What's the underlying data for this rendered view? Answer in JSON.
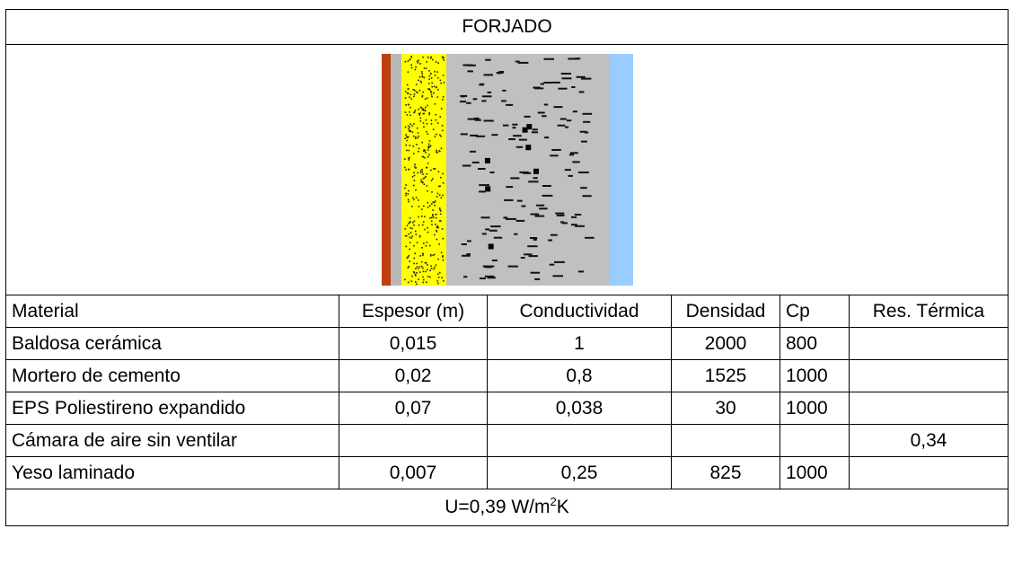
{
  "title": "FORJADO",
  "columns": [
    "Material",
    "Espesor (m)",
    "Conductividad",
    "Densidad",
    "Cp",
    "Res. Térmica"
  ],
  "rows": [
    [
      "Baldosa cerámica",
      "0,015",
      "1",
      "2000",
      "800",
      ""
    ],
    [
      "Mortero de cemento",
      "0,02",
      "0,8",
      "1525",
      "1000",
      ""
    ],
    [
      "EPS Poliestireno expandido",
      "0,07",
      "0,038",
      "30",
      "1000",
      ""
    ],
    [
      "Cámara de aire sin ventilar",
      "",
      "",
      "",
      "",
      "0,34"
    ],
    [
      "Yeso laminado",
      "0,007",
      "0,25",
      "825",
      "1000",
      ""
    ]
  ],
  "u_value": {
    "prefix": "U=0,39 W/m",
    "superscript": "2",
    "suffix": "K"
  },
  "layer_figure": {
    "layers": [
      {
        "name": "Baldosa cerámica",
        "color": "#c0400c",
        "pattern": "solid"
      },
      {
        "name": "Mortero de cemento",
        "color": "#b8b8b8",
        "pattern": "solid"
      },
      {
        "name": "EPS Poliestireno expandido",
        "color": "#ffff00",
        "pattern": "dots"
      },
      {
        "name": "Cámara de aire sin ventilar",
        "color": "#c0c0c0",
        "pattern": "dashes"
      },
      {
        "name": "Yeso laminado",
        "color": "#99ccff",
        "pattern": "solid"
      }
    ]
  }
}
